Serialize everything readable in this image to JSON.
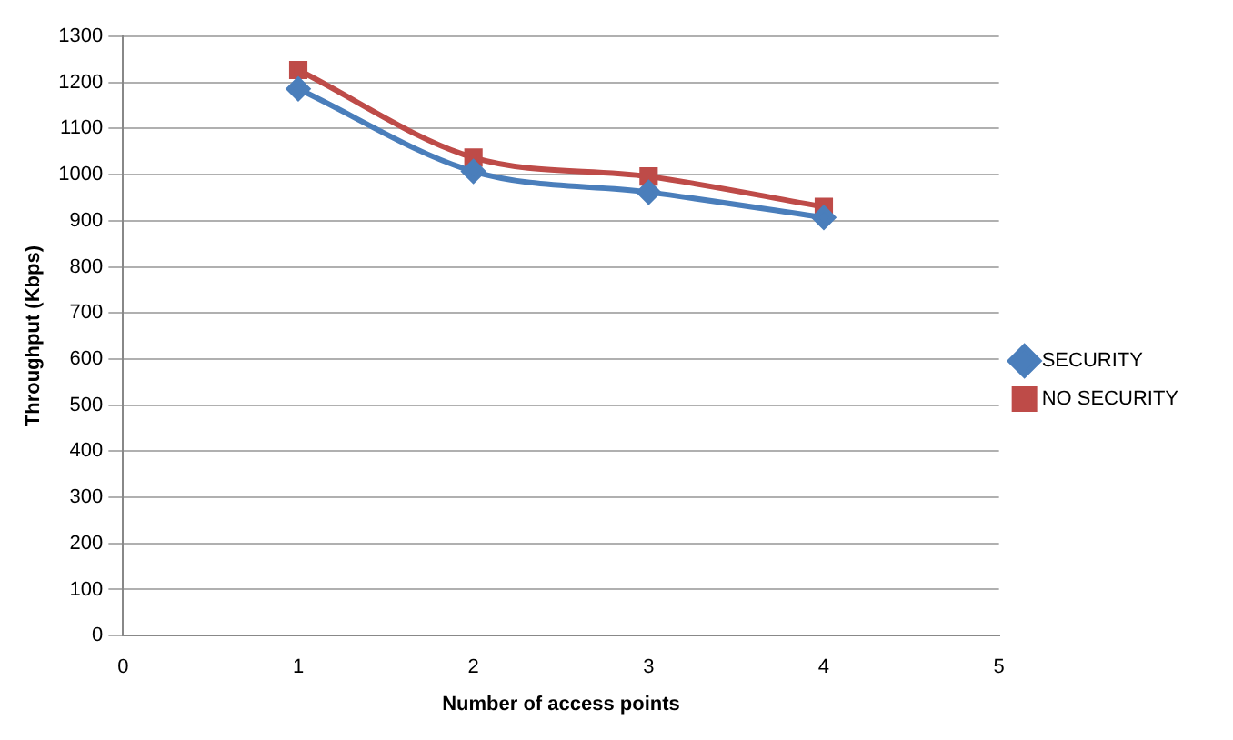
{
  "chart_data": {
    "type": "line",
    "xlabel": "Number of access points",
    "ylabel": "Throughput (Kbps)",
    "x": [
      1,
      2,
      3,
      4
    ],
    "xlim": [
      0,
      5
    ],
    "xticks": [
      0,
      1,
      2,
      3,
      4,
      5
    ],
    "ylim": [
      0,
      1300
    ],
    "yticks": [
      0,
      100,
      200,
      300,
      400,
      500,
      600,
      700,
      800,
      900,
      1000,
      1100,
      1200,
      1300
    ],
    "grid": "y",
    "legend": "right",
    "series": [
      {
        "name": "SECURITY",
        "color": "#4a7ebb",
        "values": [
          1186,
          1007,
          962,
          907
        ],
        "marker": "diamond"
      },
      {
        "name": "NO SECURITY",
        "color": "#be4b48",
        "values": [
          1227,
          1037,
          996,
          930
        ],
        "marker": "square"
      }
    ]
  }
}
